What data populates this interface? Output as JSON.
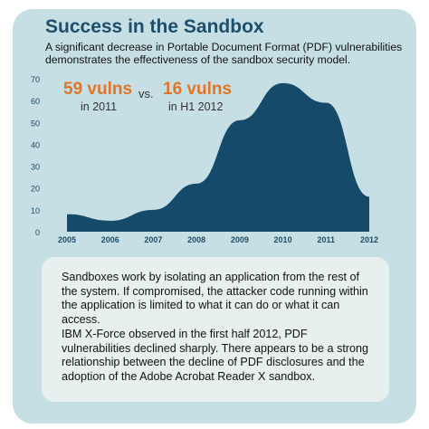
{
  "header": {
    "title": "Success in the Sandbox",
    "subtitle": "A significant decrease in Portable Document Format (PDF) vulnerabilities demonstrates the effectiveness of the sandbox security model."
  },
  "callouts": {
    "left_value": "59 vulns",
    "left_period": "in 2011",
    "vs": "vs.",
    "right_value": "16 vulns",
    "right_period": "in H1 2012"
  },
  "notes": {
    "paragraph1": "Sandboxes work by isolating an application from the rest of the system. If compromised, the attacker code running within the application is limited to what it can do or what it can access.",
    "paragraph2": "IBM X-Force observed in the first half 2012, PDF vulnerabilities declined sharply. There appears to be a strong relationship between the decline of PDF disclosures and the adoption of the Adobe Acrobat Reader X sandbox."
  },
  "colors": {
    "panel": "#c5dfe4",
    "area": "#154a6b",
    "title": "#1d4e6b",
    "callout": "#e07626",
    "note_box": "#e6f0ee",
    "axis_text": "#1d4e6b"
  },
  "chart_data": {
    "type": "area",
    "x": [
      "2005",
      "2006",
      "2007",
      "2008",
      "2009",
      "2010",
      "2011",
      "2012"
    ],
    "values": [
      8,
      5,
      10,
      22,
      51,
      68,
      59,
      16
    ],
    "ylim": [
      0,
      70
    ],
    "yticks": [
      0,
      10,
      20,
      30,
      40,
      50,
      60,
      70
    ],
    "grid": false,
    "legend": "none"
  }
}
